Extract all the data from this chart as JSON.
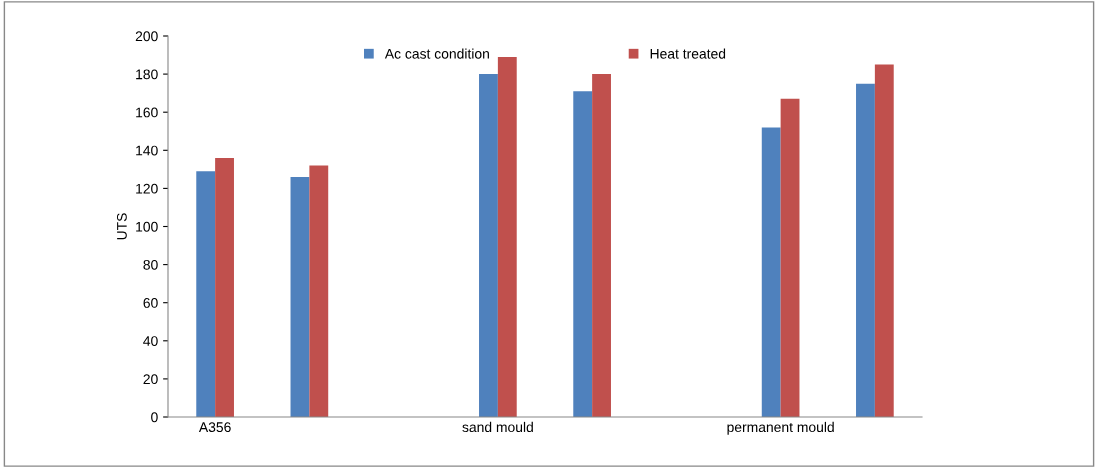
{
  "chart_data": {
    "type": "bar",
    "ylabel": "UTS",
    "categories": [
      "A356",
      null,
      null,
      "sand mould",
      null,
      null,
      "permanent mould",
      null
    ],
    "series": [
      {
        "name": "Ac cast condition",
        "color": "#4f81bd",
        "values": [
          129,
          126,
          null,
          180,
          171,
          null,
          152,
          175
        ]
      },
      {
        "name": "Heat treated",
        "color": "#c0504d",
        "values": [
          136,
          132,
          null,
          189,
          180,
          null,
          167,
          185
        ]
      }
    ],
    "ylim": [
      0,
      200
    ],
    "yticks": [
      0,
      20,
      40,
      60,
      80,
      100,
      120,
      140,
      160,
      180,
      200
    ],
    "grid": false,
    "legend": "top"
  }
}
